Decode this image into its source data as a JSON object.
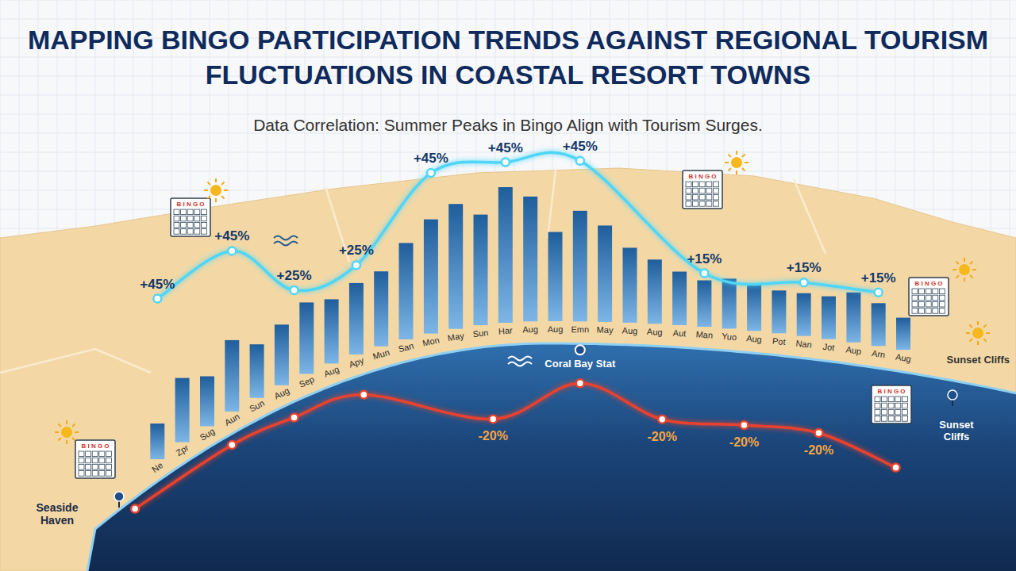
{
  "chart_data": {
    "type": "bar",
    "title": "MAPPING BINGO PARTICIPATION TRENDS AGAINST REGIONAL TOURISM FLUCTUATIONS IN COASTAL RESORT TOWNS",
    "subtitle": "Data Correlation: Summer Peaks in Bingo Align with Tourism Surges.",
    "categories": [
      "Ne",
      "Zpr",
      "Sug",
      "Aun",
      "Sun",
      "Aug",
      "Sep",
      "Aug",
      "Apy",
      "Mun",
      "San",
      "Mon",
      "May",
      "Sun",
      "Har",
      "Aug",
      "Aug",
      "Emn",
      "May",
      "Aug",
      "Aug",
      "Aut",
      "Man",
      "Yuo",
      "Aug",
      "Pot",
      "Nan",
      "Jot",
      "Aup",
      "Arn",
      "Aug"
    ],
    "series": [
      {
        "type": "bar",
        "color": "#1f5e9c",
        "values": [
          10,
          18,
          14,
          20,
          15,
          17,
          20,
          18,
          20,
          21,
          27,
          32,
          35,
          31,
          38,
          35,
          25,
          31,
          27,
          21,
          18,
          15,
          13,
          14,
          13,
          12,
          12,
          12,
          14,
          12,
          9
        ]
      },
      {
        "type": "line",
        "color": "#4fd6f7",
        "marker": "circle",
        "x": [
          0,
          3,
          5.5,
          8,
          11,
          14,
          17,
          22,
          26,
          29
        ],
        "values": [
          45,
          45,
          25,
          25,
          45,
          45,
          45,
          15,
          15,
          15
        ],
        "value_labels": [
          "+45%",
          "+45%",
          "+25%",
          "+25%",
          "+45%",
          "+45%",
          "+45%",
          "+15%",
          "+15%",
          "+15%"
        ]
      },
      {
        "type": "line",
        "axis": "y2",
        "color": "#e8432e",
        "marker": "circle",
        "x": [
          -0.9,
          3,
          5.5,
          8.3,
          13.5,
          17,
          20.3,
          23.6,
          26.6,
          29.7
        ],
        "values": [
          -7,
          -7,
          -8,
          -9,
          -20,
          -13,
          -20,
          -20,
          -20,
          -25
        ],
        "value_labels": [
          null,
          null,
          null,
          null,
          "-20%",
          null,
          "-20%",
          "-20%",
          "-20%",
          null
        ]
      }
    ],
    "xlim": [
      -1,
      30
    ],
    "ylim": [
      0,
      50
    ],
    "y2lim": [
      -30,
      10
    ],
    "tick_labels": false,
    "data_labels": true,
    "annotations": {
      "places": [
        "Seaside Haven",
        "Coral Bay Stat",
        "Sunset Cliffs",
        "Sunset Cliffs"
      ],
      "card_text": "B I N G O"
    }
  }
}
